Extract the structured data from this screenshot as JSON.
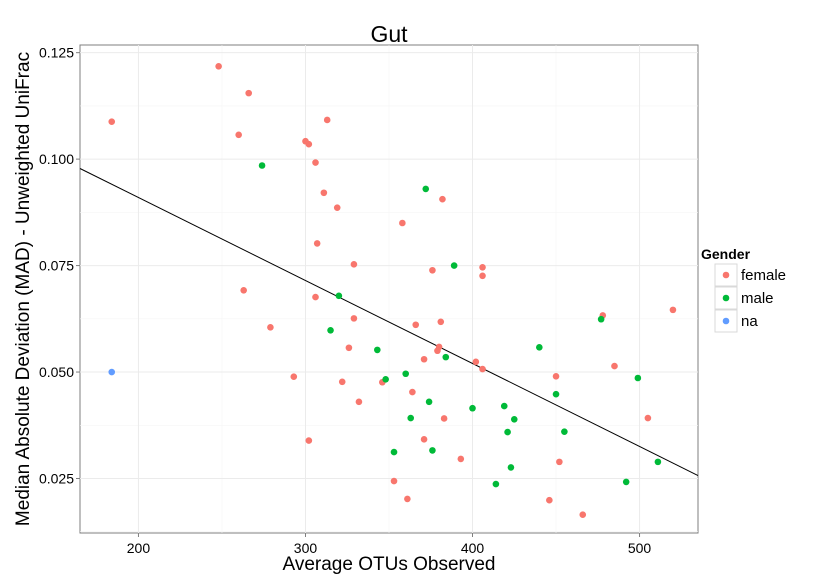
{
  "chart_data": {
    "type": "scatter",
    "title": "Gut",
    "xlabel": "Average OTUs Observed",
    "ylabel": "Median Absolute Deviation (MAD) - Unweighted UniFrac",
    "xlim": [
      165,
      535
    ],
    "ylim": [
      0.0122,
      0.1268
    ],
    "x_ticks": [
      200,
      300,
      400,
      500
    ],
    "x_tick_labels": [
      "200",
      "300",
      "400",
      "500"
    ],
    "y_ticks": [
      0.025,
      0.05,
      0.075,
      0.1,
      0.125
    ],
    "y_tick_labels": [
      "0.025",
      "0.050",
      "0.075",
      "0.100",
      "0.125"
    ],
    "grid": true,
    "legend": {
      "title": "Gender",
      "position": "right",
      "entries": [
        {
          "label": "female",
          "color": "#F8766D"
        },
        {
          "label": "male",
          "color": "#00BA38"
        },
        {
          "label": "na",
          "color": "#619CFF"
        }
      ]
    },
    "trend_line": {
      "x": [
        165,
        535
      ],
      "y": [
        0.0978,
        0.0257
      ]
    },
    "series": [
      {
        "name": "female",
        "color": "#F8766D",
        "points": [
          [
            184,
            0.1088
          ],
          [
            248,
            0.1218
          ],
          [
            266,
            0.1155
          ],
          [
            260,
            0.1057
          ],
          [
            300,
            0.1042
          ],
          [
            302,
            0.1035
          ],
          [
            313,
            0.1092
          ],
          [
            306,
            0.0992
          ],
          [
            311,
            0.0921
          ],
          [
            319,
            0.0886
          ],
          [
            307,
            0.0802
          ],
          [
            329,
            0.0753
          ],
          [
            263,
            0.0692
          ],
          [
            306,
            0.0676
          ],
          [
            279,
            0.0605
          ],
          [
            329,
            0.0626
          ],
          [
            326,
            0.0557
          ],
          [
            293,
            0.0489
          ],
          [
            322,
            0.0477
          ],
          [
            332,
            0.043
          ],
          [
            302,
            0.0339
          ],
          [
            358,
            0.085
          ],
          [
            382,
            0.0906
          ],
          [
            406,
            0.0746
          ],
          [
            406,
            0.0726
          ],
          [
            376,
            0.0739
          ],
          [
            366,
            0.0611
          ],
          [
            381,
            0.0618
          ],
          [
            380,
            0.0559
          ],
          [
            379,
            0.055
          ],
          [
            371,
            0.053
          ],
          [
            402,
            0.0524
          ],
          [
            406,
            0.0507
          ],
          [
            346,
            0.0476
          ],
          [
            364,
            0.0453
          ],
          [
            383,
            0.0391
          ],
          [
            371,
            0.0342
          ],
          [
            393,
            0.0296
          ],
          [
            353,
            0.0244
          ],
          [
            361,
            0.0202
          ],
          [
            478,
            0.0633
          ],
          [
            520,
            0.0646
          ],
          [
            485,
            0.0514
          ],
          [
            450,
            0.049
          ],
          [
            505,
            0.0392
          ],
          [
            452,
            0.0289
          ],
          [
            446,
            0.0199
          ],
          [
            466,
            0.0165
          ]
        ]
      },
      {
        "name": "male",
        "color": "#00BA38",
        "points": [
          [
            274,
            0.0985
          ],
          [
            320,
            0.0679
          ],
          [
            315,
            0.0598
          ],
          [
            343,
            0.0552
          ],
          [
            348,
            0.0483
          ],
          [
            360,
            0.0496
          ],
          [
            372,
            0.093
          ],
          [
            389,
            0.075
          ],
          [
            384,
            0.0535
          ],
          [
            374,
            0.043
          ],
          [
            363,
            0.0392
          ],
          [
            353,
            0.0312
          ],
          [
            376,
            0.0316
          ],
          [
            400,
            0.0415
          ],
          [
            419,
            0.042
          ],
          [
            421,
            0.0359
          ],
          [
            425,
            0.0389
          ],
          [
            423,
            0.0276
          ],
          [
            414,
            0.0237
          ],
          [
            440,
            0.0558
          ],
          [
            477,
            0.0624
          ],
          [
            499,
            0.0486
          ],
          [
            450,
            0.0448
          ],
          [
            455,
            0.036
          ],
          [
            511,
            0.0289
          ],
          [
            492,
            0.0242
          ]
        ]
      },
      {
        "name": "na",
        "color": "#619CFF",
        "points": [
          [
            184,
            0.05
          ]
        ]
      }
    ]
  }
}
